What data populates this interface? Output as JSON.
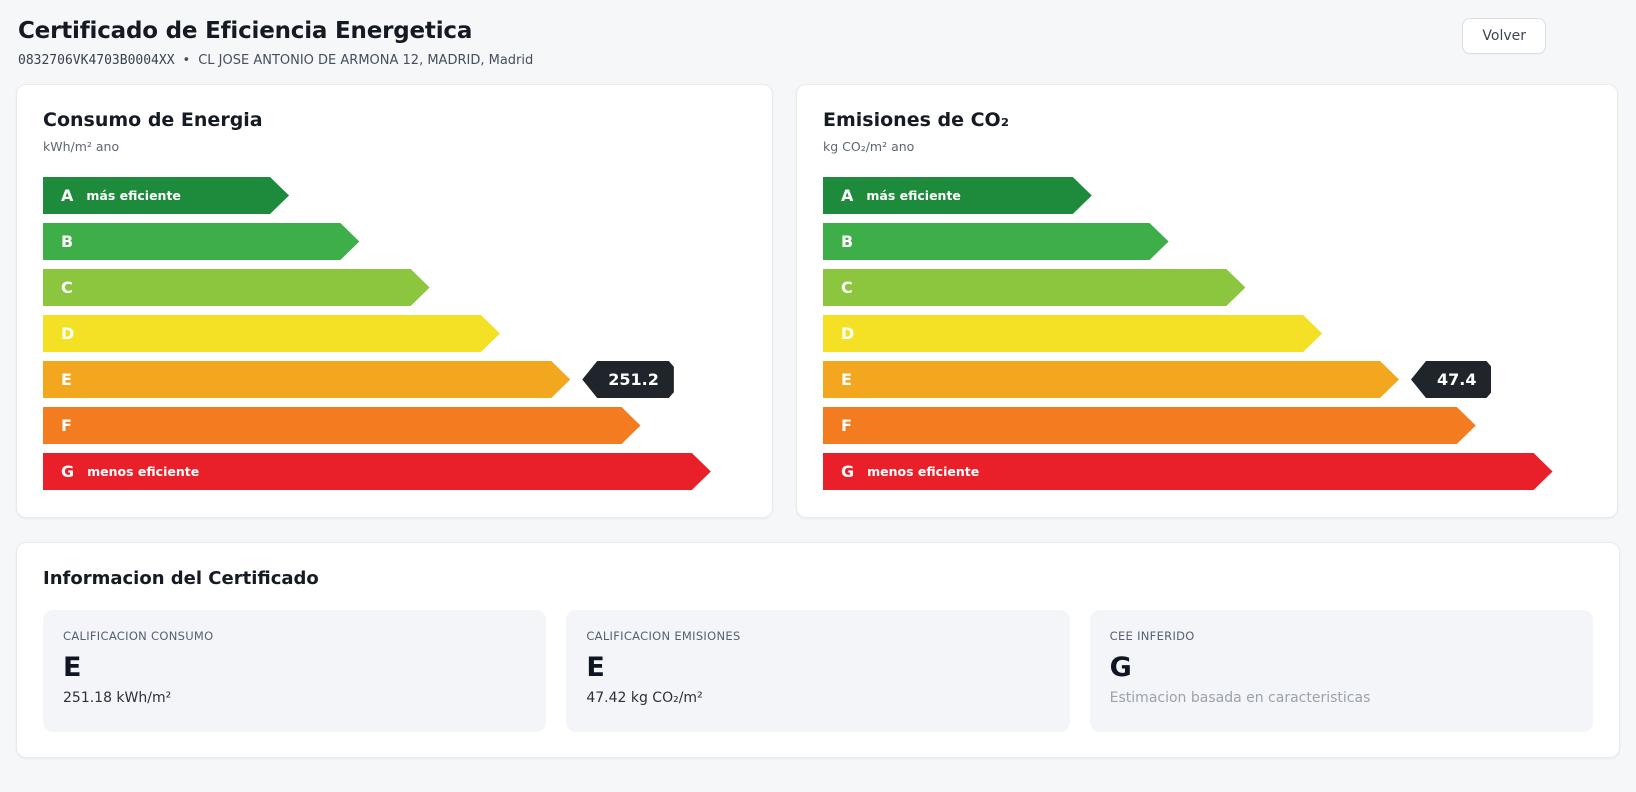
{
  "header": {
    "title": "Certificado de Eficiencia Energetica",
    "reference_code": "0832706VK4703B0004XX",
    "separator": "•",
    "address": "CL JOSE ANTONIO DE ARMONA 12, MADRID, Madrid",
    "back_button_label": "Volver"
  },
  "rating_bands": [
    {
      "letter": "A",
      "note": "más eficiente",
      "color": "#1e8a3c",
      "width_pct": 35
    },
    {
      "letter": "B",
      "note": "",
      "color": "#3eae49",
      "width_pct": 45
    },
    {
      "letter": "C",
      "note": "",
      "color": "#8cc63f",
      "width_pct": 55
    },
    {
      "letter": "D",
      "note": "",
      "color": "#f4e125",
      "width_pct": 65
    },
    {
      "letter": "E",
      "note": "",
      "color": "#f2a71f",
      "width_pct": 75
    },
    {
      "letter": "F",
      "note": "",
      "color": "#f47c20",
      "width_pct": 85
    },
    {
      "letter": "G",
      "note": "menos eficiente",
      "color": "#e9202a",
      "width_pct": 95
    }
  ],
  "charts": {
    "consumo": {
      "title": "Consumo de Energia",
      "unit": "kWh/m² ano",
      "marker": {
        "letter": "E",
        "value": "251.2",
        "badge_color": "#20252c"
      }
    },
    "emisiones": {
      "title": "Emisiones de CO₂",
      "unit": "kg CO₂/m² ano",
      "marker": {
        "letter": "E",
        "value": "47.4",
        "badge_color": "#20252c"
      }
    }
  },
  "info": {
    "title": "Informacion del Certificado",
    "tiles": [
      {
        "label": "CALIFICACION CONSUMO",
        "rating": "E",
        "detail": "251.18 kWh/m²"
      },
      {
        "label": "CALIFICACION EMISIONES",
        "rating": "E",
        "detail": "47.42 kg CO₂/m²"
      },
      {
        "label": "CEE INFERIDO",
        "rating": "G",
        "detail": "Estimacion basada en caracteristicas"
      }
    ]
  }
}
